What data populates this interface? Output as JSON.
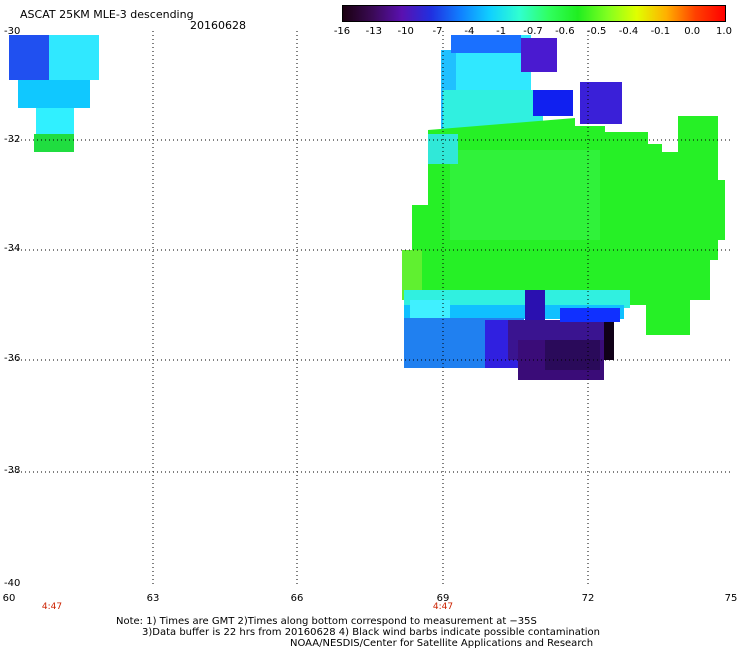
{
  "header": {
    "title": "ASCAT 25KM MLE-3 descending",
    "date": "20160628"
  },
  "colorbar": {
    "ticks": [
      "-16",
      "-13",
      "-10",
      "-7",
      "-4",
      "-1",
      "-0.7",
      "-0.6",
      "-0.5",
      "-0.4",
      "-0.1",
      "0.0",
      "1.0"
    ],
    "colors": [
      "#1a0010",
      "#3a0a55",
      "#5a10b0",
      "#2030e0",
      "#1080ff",
      "#10d0ff",
      "#30ffd0",
      "#30ff60",
      "#20ee20",
      "#80ff20",
      "#e0ff00",
      "#ffb000",
      "#ff4000",
      "#ff0000"
    ]
  },
  "axes": {
    "x_ticks": [
      "60",
      "63",
      "66",
      "69",
      "72",
      "75"
    ],
    "y_ticks": [
      "-30",
      "-32",
      "-34",
      "-36",
      "-38",
      "-40"
    ]
  },
  "time_labels": [
    "4:47",
    "4:47"
  ],
  "notes": [
    "Note: 1) Times are GMT 2)Times along bottom correspond to measurement at −35S",
    "3)Data buffer is 22 hrs from 20160628 4) Black wind barbs indicate possible contamination",
    "NOAA/NESDIS/Center for Satellite Applications and Research"
  ]
}
